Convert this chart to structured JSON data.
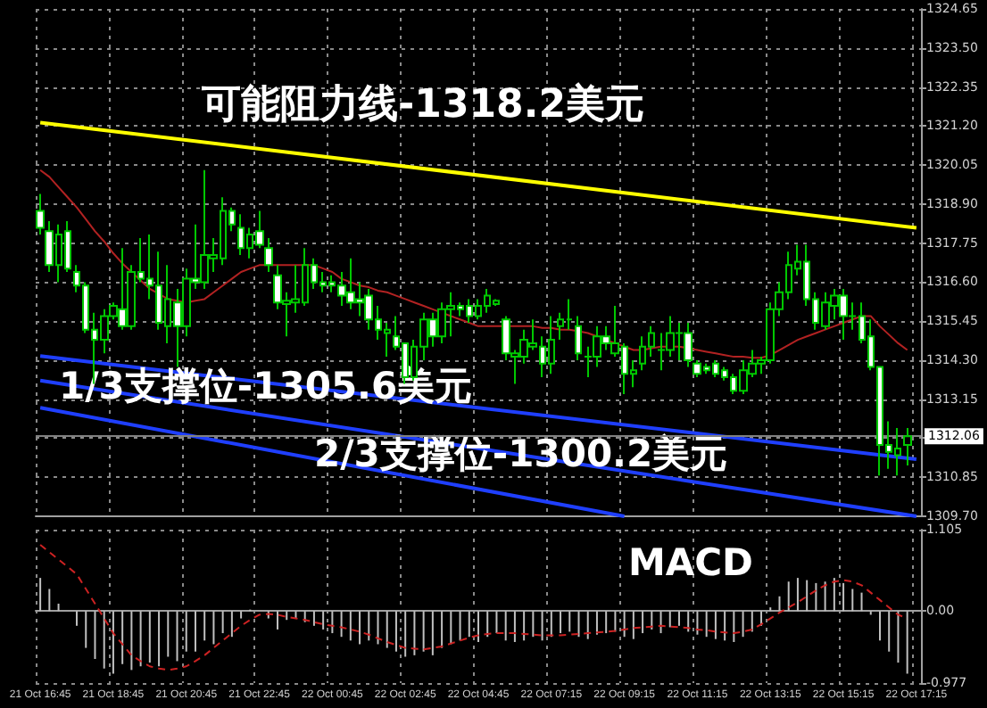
{
  "chart_data": [
    {
      "type": "candlestick",
      "color": "#00c800",
      "categories": [
        "21 Oct 16:45",
        null,
        null,
        null,
        null,
        null,
        null,
        null,
        "21 Oct 18:45",
        null,
        null,
        null,
        null,
        null,
        null,
        null,
        "21 Oct 20:45",
        null,
        null,
        null,
        null,
        null,
        null,
        null,
        "21 Oct 22:45",
        null,
        null,
        null,
        null,
        null,
        null,
        null,
        "22 Oct 00:45",
        null,
        null,
        null,
        null,
        null,
        null,
        null,
        "22 Oct 02:45",
        null,
        null,
        null,
        null,
        null,
        null,
        null,
        "22 Oct 04:45",
        null,
        null,
        null,
        null,
        null,
        null,
        null,
        "22 Oct 07:15",
        null,
        null,
        null,
        null,
        null,
        null,
        null,
        "22 Oct 09:15",
        null,
        null,
        null,
        null,
        null,
        null,
        null,
        "22 Oct 11:15",
        null,
        null,
        null,
        null,
        null,
        null,
        null,
        "22 Oct 13:15",
        null,
        null,
        null,
        null,
        null,
        null,
        null,
        "22 Oct 15:15",
        null,
        null,
        null,
        null,
        null,
        null,
        null,
        "22 Oct 17:15"
      ],
      "ohlc": [
        [
          1318.7,
          1319.2,
          1318.0,
          1318.2
        ],
        [
          1318.1,
          1318.4,
          1316.9,
          1317.1
        ],
        [
          1317.1,
          1318.3,
          1316.6,
          1318.0
        ],
        [
          1318.1,
          1318.4,
          1316.9,
          1317.0
        ],
        [
          1316.9,
          1317.1,
          1316.3,
          1316.5
        ],
        [
          1316.5,
          1316.6,
          1315.1,
          1315.2
        ],
        [
          1315.2,
          1315.7,
          1313.6,
          1314.9
        ],
        [
          1314.9,
          1315.8,
          1314.5,
          1315.6
        ],
        [
          1315.6,
          1316.0,
          1315.5,
          1315.9
        ],
        [
          1315.8,
          1317.6,
          1315.2,
          1315.3
        ],
        [
          1315.3,
          1317.1,
          1315.2,
          1316.9
        ],
        [
          1316.9,
          1317.9,
          1316.6,
          1316.7
        ],
        [
          1316.7,
          1318.0,
          1316.1,
          1316.5
        ],
        [
          1316.5,
          1317.5,
          1315.2,
          1315.4
        ],
        [
          1315.3,
          1317.1,
          1314.8,
          1316.1
        ],
        [
          1316.0,
          1316.4,
          1314.1,
          1315.3
        ],
        [
          1315.3,
          1317.0,
          1315.0,
          1316.7
        ],
        [
          1316.7,
          1318.3,
          1316.4,
          1316.6
        ],
        [
          1316.6,
          1319.9,
          1316.4,
          1317.4
        ],
        [
          1317.3,
          1317.9,
          1316.9,
          1317.4
        ],
        [
          1317.3,
          1319.1,
          1317.1,
          1318.7
        ],
        [
          1318.7,
          1318.8,
          1318.1,
          1318.3
        ],
        [
          1318.2,
          1318.6,
          1317.4,
          1317.6
        ],
        [
          1317.6,
          1318.2,
          1317.3,
          1318.0
        ],
        [
          1318.1,
          1318.7,
          1317.6,
          1317.7
        ],
        [
          1317.6,
          1317.9,
          1316.9,
          1317.1
        ],
        [
          1316.8,
          1317.1,
          1315.8,
          1316.0
        ],
        [
          1315.95,
          1316.3,
          1315.0,
          1316.05
        ],
        [
          1316.0,
          1317.1,
          1315.7,
          1316.1
        ],
        [
          1316.0,
          1317.6,
          1315.9,
          1317.1
        ],
        [
          1317.1,
          1317.3,
          1316.4,
          1316.6
        ],
        [
          1316.6,
          1316.9,
          1316.3,
          1316.5
        ],
        [
          1316.6,
          1316.8,
          1316.3,
          1316.5
        ],
        [
          1316.5,
          1316.9,
          1315.9,
          1316.2
        ],
        [
          1316.3,
          1317.3,
          1315.8,
          1316.0
        ],
        [
          1316.1,
          1316.6,
          1315.6,
          1316.0
        ],
        [
          1316.2,
          1316.4,
          1315.2,
          1315.5
        ],
        [
          1315.5,
          1315.9,
          1314.9,
          1315.2
        ],
        [
          1315.1,
          1315.4,
          1314.4,
          1315.2
        ],
        [
          1315.0,
          1315.6,
          1314.6,
          1314.7
        ],
        [
          1314.8,
          1314.8,
          1313.6,
          1313.8
        ],
        [
          1313.8,
          1314.9,
          1313.7,
          1314.7
        ],
        [
          1314.7,
          1315.7,
          1314.3,
          1315.5
        ],
        [
          1315.5,
          1315.7,
          1314.7,
          1315.0
        ],
        [
          1315.0,
          1316.0,
          1314.8,
          1315.8
        ],
        [
          1315.8,
          1316.3,
          1315.0,
          1315.9
        ],
        [
          1315.9,
          1316.0,
          1315.6,
          1315.8
        ],
        [
          1315.9,
          1316.1,
          1315.4,
          1315.6
        ],
        [
          1315.6,
          1316.1,
          1315.5,
          1315.9
        ],
        [
          1315.9,
          1316.4,
          1315.7,
          1316.2
        ],
        [
          1315.95,
          1316.1,
          1315.9,
          1316.05
        ],
        [
          1315.5,
          1315.6,
          1314.3,
          1314.5
        ],
        [
          1314.4,
          1314.6,
          1313.6,
          1314.5
        ],
        [
          1314.4,
          1315.2,
          1314.2,
          1314.9
        ],
        [
          1314.7,
          1315.5,
          1314.6,
          1314.8
        ],
        [
          1314.7,
          1315.0,
          1313.8,
          1314.2
        ],
        [
          1314.2,
          1315.6,
          1313.9,
          1314.9
        ],
        [
          1315.3,
          1315.7,
          1314.9,
          1315.5
        ],
        [
          1315.5,
          1316.1,
          1315.2,
          1315.5
        ],
        [
          1315.3,
          1315.6,
          1314.3,
          1314.5
        ],
        [
          1314.4,
          1314.7,
          1313.8,
          1314.4
        ],
        [
          1314.4,
          1315.3,
          1314.1,
          1315.0
        ],
        [
          1315.0,
          1315.3,
          1314.6,
          1314.8
        ],
        [
          1314.5,
          1315.9,
          1314.4,
          1314.8
        ],
        [
          1314.7,
          1314.8,
          1313.3,
          1313.9
        ],
        [
          1313.9,
          1314.3,
          1313.5,
          1314.0
        ],
        [
          1314.2,
          1315.0,
          1314.0,
          1314.7
        ],
        [
          1314.7,
          1315.3,
          1314.4,
          1315.1
        ],
        [
          1314.6,
          1315.1,
          1314.0,
          1314.6
        ],
        [
          1314.6,
          1315.6,
          1314.4,
          1315.1
        ],
        [
          1315.1,
          1315.4,
          1314.3,
          1315.1
        ],
        [
          1315.1,
          1315.4,
          1314.1,
          1314.3
        ],
        [
          1314.2,
          1314.3,
          1313.8,
          1313.9
        ],
        [
          1314.1,
          1314.2,
          1313.9,
          1314.0
        ],
        [
          1314.2,
          1314.3,
          1313.8,
          1313.9
        ],
        [
          1314.0,
          1314.1,
          1313.7,
          1313.8
        ],
        [
          1313.8,
          1313.9,
          1313.3,
          1313.4
        ],
        [
          1313.4,
          1314.3,
          1313.3,
          1314.0
        ],
        [
          1313.9,
          1314.6,
          1313.8,
          1314.2
        ],
        [
          1314.2,
          1314.4,
          1313.9,
          1314.3
        ],
        [
          1314.3,
          1316.0,
          1314.2,
          1315.8
        ],
        [
          1315.8,
          1316.6,
          1315.6,
          1316.3
        ],
        [
          1316.3,
          1317.5,
          1316.1,
          1317.1
        ],
        [
          1317.0,
          1317.7,
          1316.8,
          1317.2
        ],
        [
          1317.2,
          1317.7,
          1315.9,
          1316.1
        ],
        [
          1316.1,
          1316.3,
          1315.2,
          1315.4
        ],
        [
          1315.3,
          1316.3,
          1315.2,
          1316.0
        ],
        [
          1315.9,
          1316.4,
          1315.5,
          1316.2
        ],
        [
          1316.2,
          1316.4,
          1314.9,
          1315.6
        ],
        [
          1315.6,
          1316.0,
          1315.2,
          1315.6
        ],
        [
          1315.6,
          1316.0,
          1314.8,
          1314.9
        ],
        [
          1315.0,
          1315.5,
          1314.0,
          1314.1
        ],
        [
          1314.1,
          1314.1,
          1310.9,
          1311.8
        ],
        [
          1311.8,
          1312.5,
          1311.1,
          1311.6
        ],
        [
          1311.5,
          1312.3,
          1310.9,
          1311.7
        ],
        [
          1311.8,
          1312.3,
          1311.2,
          1312.06
        ],
        null
      ],
      "series": [
        {
          "type": "line",
          "color": "#b22222",
          "values": [
            1319.9,
            1319.7,
            1319.4,
            1319.1,
            1318.8,
            1318.45,
            1318.1,
            1317.8,
            1317.45,
            1317.15,
            1316.9,
            1316.65,
            1316.4,
            1316.25,
            1316.1,
            1316.05,
            1316.0,
            1316.05,
            1316.1,
            1316.3,
            1316.5,
            1316.7,
            1316.9,
            1317.0,
            1317.1,
            1317.1,
            1317.1,
            1317.1,
            1317.1,
            1317.1,
            1317.1,
            1317.0,
            1316.9,
            1316.7,
            1316.6,
            1316.5,
            1316.45,
            1316.35,
            1316.3,
            1316.2,
            1316.1,
            1316.0,
            1315.9,
            1315.8,
            1315.7,
            1315.6,
            1315.5,
            1315.4,
            1315.3,
            1315.3,
            1315.3,
            1315.3,
            1315.3,
            1315.3,
            1315.3,
            1315.25,
            1315.25,
            1315.2,
            1315.2,
            1315.15,
            1315.1,
            1315.0,
            1314.9,
            1314.8,
            1314.7,
            1314.6,
            1314.6,
            1314.65,
            1314.7,
            1314.7,
            1314.7,
            1314.65,
            1314.6,
            1314.55,
            1314.5,
            1314.45,
            1314.4,
            1314.4,
            1314.37,
            1314.37,
            1314.45,
            1314.6,
            1314.75,
            1314.9,
            1315.0,
            1315.1,
            1315.2,
            1315.3,
            1315.4,
            1315.5,
            1315.6,
            1315.6,
            1315.3,
            1315.05,
            1314.8,
            1314.6,
            null
          ]
        },
        {
          "type": "line",
          "color": "#ffff00",
          "x": [
            "21 Oct 16:45",
            "22 Oct 17:15"
          ],
          "values": [
            1321.3,
            1318.2
          ]
        },
        {
          "type": "line",
          "color": "#1f3fff",
          "x": [
            "21 Oct 16:45",
            "22 Oct 17:15"
          ],
          "values": [
            1314.42,
            1311.38
          ]
        },
        {
          "type": "line",
          "color": "#1f3fff",
          "x": [
            "21 Oct 16:45",
            "22 Oct 17:15"
          ],
          "values": [
            1313.7,
            1309.7
          ]
        },
        {
          "type": "line",
          "color": "#1f3fff",
          "x": [
            "21 Oct 16:45",
            "22 Oct 09:15"
          ],
          "values": [
            1312.9,
            1309.7
          ]
        }
      ],
      "ylim": [
        1309.7,
        1324.65
      ],
      "yticks": [
        {
          "value": 1309.7,
          "label": "1309.70"
        },
        {
          "value": 1310.85,
          "label": "1310.85"
        },
        {
          "value": 1312.0,
          "label": null
        },
        {
          "value": 1313.15,
          "label": "1313.15"
        },
        {
          "value": 1314.3,
          "label": "1314.30"
        },
        {
          "value": 1315.45,
          "label": "1315.45"
        },
        {
          "value": 1316.6,
          "label": "1316.60"
        },
        {
          "value": 1317.75,
          "label": "1317.75"
        },
        {
          "value": 1318.9,
          "label": "1318.90"
        },
        {
          "value": 1320.05,
          "label": "1320.05"
        },
        {
          "value": 1321.2,
          "label": "1321.20"
        },
        {
          "value": 1322.35,
          "label": "1322.35"
        },
        {
          "value": 1323.5,
          "label": "1323.50"
        },
        {
          "value": 1324.65,
          "label": "1324.65"
        }
      ],
      "ref_lines": [
        {
          "axis": "y",
          "value": 1312.06,
          "label": "1312.06",
          "color": "#808080"
        }
      ],
      "annotations": [
        "可能阻力线-1318.2美元",
        "1/3支撑位-1305.6美元",
        "2/3支撑位-1300.2美元"
      ],
      "grid": true,
      "tick_labels": "y"
    },
    {
      "type": "bar",
      "categories": [
        "21 Oct 16:45",
        null,
        null,
        null,
        null,
        null,
        null,
        null,
        "21 Oct 18:45",
        null,
        null,
        null,
        null,
        null,
        null,
        null,
        "21 Oct 20:45",
        null,
        null,
        null,
        null,
        null,
        null,
        null,
        "21 Oct 22:45",
        null,
        null,
        null,
        null,
        null,
        null,
        null,
        "22 Oct 00:45",
        null,
        null,
        null,
        null,
        null,
        null,
        null,
        "22 Oct 02:45",
        null,
        null,
        null,
        null,
        null,
        null,
        null,
        "22 Oct 04:45",
        null,
        null,
        null,
        null,
        null,
        null,
        null,
        "22 Oct 07:15",
        null,
        null,
        null,
        null,
        null,
        null,
        null,
        "22 Oct 09:15",
        null,
        null,
        null,
        null,
        null,
        null,
        null,
        "22 Oct 11:15",
        null,
        null,
        null,
        null,
        null,
        null,
        null,
        "22 Oct 13:15",
        null,
        null,
        null,
        null,
        null,
        null,
        null,
        "22 Oct 15:15",
        null,
        null,
        null,
        null,
        null,
        null,
        null,
        "22 Oct 17:15"
      ],
      "series": [
        {
          "type": "bar",
          "color": "#c0c0c0",
          "values": [
            0.45,
            0.3,
            0.1,
            null,
            -0.2,
            -0.5,
            -0.65,
            -0.78,
            -0.85,
            -0.72,
            -0.8,
            -0.75,
            -0.7,
            -0.75,
            -0.62,
            -0.68,
            -0.55,
            -0.55,
            -0.4,
            -0.45,
            -0.3,
            -0.35,
            -0.1,
            0.02,
            null,
            -0.1,
            -0.25,
            -0.12,
            -0.1,
            -0.15,
            -0.2,
            -0.25,
            -0.3,
            -0.35,
            -0.4,
            -0.45,
            -0.4,
            -0.45,
            -0.5,
            -0.55,
            -0.62,
            -0.6,
            -0.55,
            -0.6,
            -0.5,
            -0.45,
            -0.4,
            -0.35,
            -0.42,
            -0.35,
            -0.3,
            -0.4,
            -0.42,
            -0.4,
            -0.35,
            -0.4,
            -0.35,
            -0.3,
            -0.28,
            -0.35,
            -0.38,
            -0.32,
            -0.3,
            -0.28,
            -0.35,
            -0.38,
            -0.3,
            -0.25,
            -0.3,
            -0.22,
            -0.2,
            -0.28,
            -0.32,
            -0.35,
            -0.38,
            -0.4,
            -0.42,
            -0.35,
            -0.28,
            -0.2,
            0.05,
            0.2,
            0.4,
            0.45,
            0.42,
            0.38,
            0.4,
            0.45,
            0.38,
            0.3,
            0.25,
            -0.05,
            -0.4,
            -0.55,
            -0.7,
            -0.85,
            null
          ]
        },
        {
          "type": "line",
          "color": "#cc2222",
          "line_style": "dashed",
          "values": [
            0.9,
            0.8,
            0.7,
            0.6,
            0.5,
            0.3,
            0.1,
            -0.1,
            -0.3,
            -0.45,
            -0.6,
            -0.68,
            -0.75,
            -0.78,
            -0.8,
            -0.78,
            -0.75,
            -0.68,
            -0.6,
            -0.5,
            -0.4,
            -0.3,
            -0.2,
            -0.12,
            -0.05,
            -0.04,
            -0.05,
            -0.08,
            -0.1,
            -0.12,
            -0.15,
            -0.18,
            -0.2,
            -0.22,
            -0.25,
            -0.28,
            -0.32,
            -0.37,
            -0.42,
            -0.46,
            -0.5,
            -0.51,
            -0.52,
            -0.5,
            -0.48,
            -0.44,
            -0.4,
            -0.36,
            -0.33,
            -0.31,
            -0.3,
            -0.3,
            -0.3,
            -0.31,
            -0.32,
            -0.33,
            -0.33,
            -0.33,
            -0.32,
            -0.31,
            -0.3,
            -0.29,
            -0.28,
            -0.27,
            -0.25,
            -0.23,
            -0.22,
            -0.21,
            -0.2,
            -0.21,
            -0.22,
            -0.23,
            -0.25,
            -0.26,
            -0.28,
            -0.29,
            -0.3,
            -0.28,
            -0.25,
            -0.18,
            -0.1,
            -0.02,
            0.05,
            0.12,
            0.2,
            0.28,
            0.35,
            0.4,
            0.42,
            0.4,
            0.35,
            0.25,
            0.15,
            0.05,
            -0.05,
            -0.1,
            null
          ]
        }
      ],
      "ylim": [
        -0.977,
        1.105
      ],
      "yticks": [
        -0.977,
        {
          "value": 0,
          "label": "0.00"
        },
        1.105
      ],
      "annotations": [
        "MACD"
      ],
      "grid": true
    }
  ]
}
